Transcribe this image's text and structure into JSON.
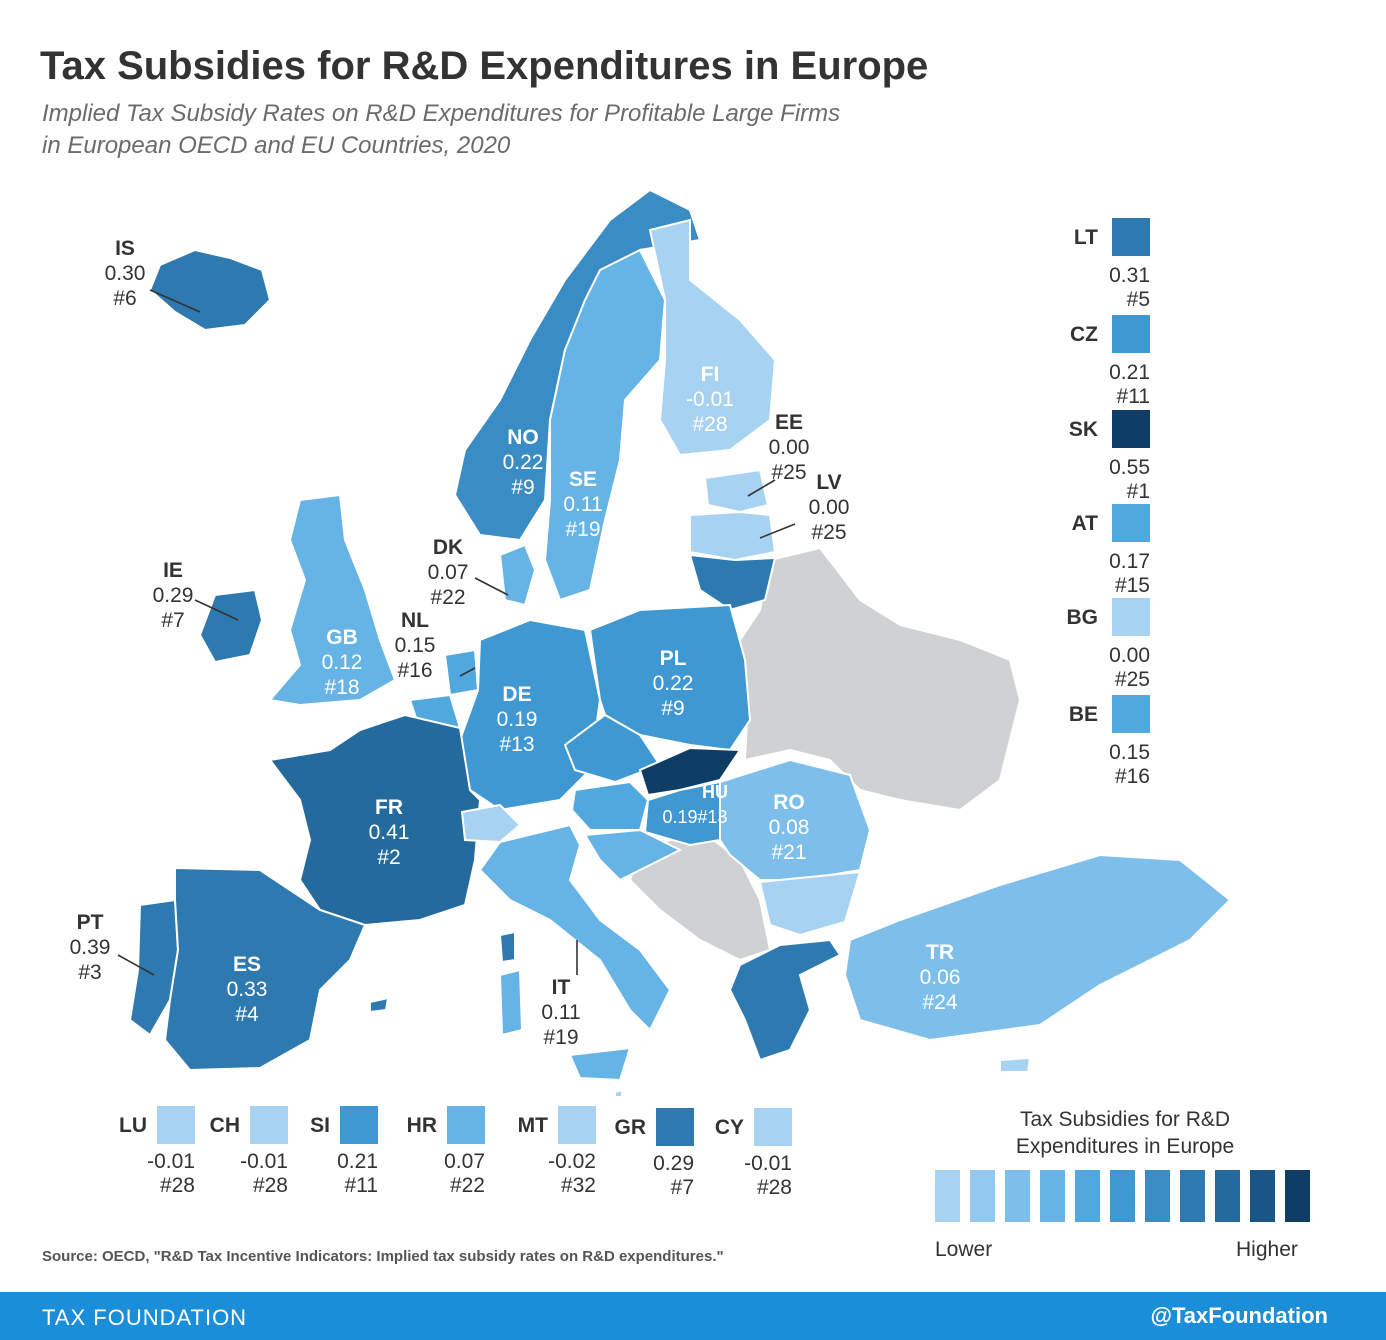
{
  "header": {
    "title": "Tax Subsidies for R&D Expenditures in Europe",
    "subtitle_line1": "Implied Tax Subsidy Rates on R&D Expenditures for Profitable Large Firms",
    "subtitle_line2": "in European OECD and EU Countries, 2020"
  },
  "colors": {
    "no_data": "#d0d1d3",
    "scale": [
      "#a8d2f2",
      "#93c9ef",
      "#7dbfea",
      "#66b4e5",
      "#50a8df",
      "#3f98d1",
      "#3a8cc5",
      "#2e79b0",
      "#256a9d",
      "#1a5685",
      "#0e3d66"
    ]
  },
  "map_labels": [
    {
      "code": "IS",
      "value": "0.30",
      "rank": "#6"
    },
    {
      "code": "NO",
      "value": "0.22",
      "rank": "#9"
    },
    {
      "code": "SE",
      "value": "0.11",
      "rank": "#19"
    },
    {
      "code": "FI",
      "value": "-0.01",
      "rank": "#28"
    },
    {
      "code": "EE",
      "value": "0.00",
      "rank": "#25"
    },
    {
      "code": "LV",
      "value": "0.00",
      "rank": "#25"
    },
    {
      "code": "DK",
      "value": "0.07",
      "rank": "#22"
    },
    {
      "code": "IE",
      "value": "0.29",
      "rank": "#7"
    },
    {
      "code": "GB",
      "value": "0.12",
      "rank": "#18"
    },
    {
      "code": "NL",
      "value": "0.15",
      "rank": "#16"
    },
    {
      "code": "DE",
      "value": "0.19",
      "rank": "#13"
    },
    {
      "code": "PL",
      "value": "0.22",
      "rank": "#9"
    },
    {
      "code": "FR",
      "value": "0.41",
      "rank": "#2"
    },
    {
      "code": "HU",
      "value": "0.19",
      "rank": "#13"
    },
    {
      "code": "RO",
      "value": "0.08",
      "rank": "#21"
    },
    {
      "code": "PT",
      "value": "0.39",
      "rank": "#3"
    },
    {
      "code": "ES",
      "value": "0.33",
      "rank": "#4"
    },
    {
      "code": "IT",
      "value": "0.11",
      "rank": "#19"
    },
    {
      "code": "TR",
      "value": "0.06",
      "rank": "#24"
    }
  ],
  "right_legend": [
    {
      "code": "LT",
      "value": "0.31",
      "rank": "#5",
      "color": "#2e79b0"
    },
    {
      "code": "CZ",
      "value": "0.21",
      "rank": "#11",
      "color": "#3f98d1"
    },
    {
      "code": "SK",
      "value": "0.55",
      "rank": "#1",
      "color": "#0e3d66"
    },
    {
      "code": "AT",
      "value": "0.17",
      "rank": "#15",
      "color": "#50a8df"
    },
    {
      "code": "BG",
      "value": "0.00",
      "rank": "#25",
      "color": "#a8d2f2"
    },
    {
      "code": "BE",
      "value": "0.15",
      "rank": "#16",
      "color": "#50a8df"
    }
  ],
  "bottom_legend": [
    {
      "code": "LU",
      "value": "-0.01",
      "rank": "#28",
      "color": "#a8d2f2"
    },
    {
      "code": "CH",
      "value": "-0.01",
      "rank": "#28",
      "color": "#a8d2f2"
    },
    {
      "code": "SI",
      "value": "0.21",
      "rank": "#11",
      "color": "#3f98d1"
    },
    {
      "code": "HR",
      "value": "0.07",
      "rank": "#22",
      "color": "#66b4e5"
    },
    {
      "code": "MT",
      "value": "-0.02",
      "rank": "#32",
      "color": "#a8d2f2"
    },
    {
      "code": "GR",
      "value": "0.29",
      "rank": "#7",
      "color": "#2e79b0"
    },
    {
      "code": "CY",
      "value": "-0.01",
      "rank": "#28",
      "color": "#a8d2f2"
    }
  ],
  "scale_legend": {
    "title_line1": "Tax Subsidies for R&D",
    "title_line2": "Expenditures in Europe",
    "low_label": "Lower",
    "high_label": "Higher"
  },
  "source": "Source: OECD, \"R&D Tax Incentive Indicators: Implied tax subsidy rates on R&D expenditures.\"",
  "footer": {
    "brand": "TAX FOUNDATION",
    "handle": "@TaxFoundation"
  }
}
